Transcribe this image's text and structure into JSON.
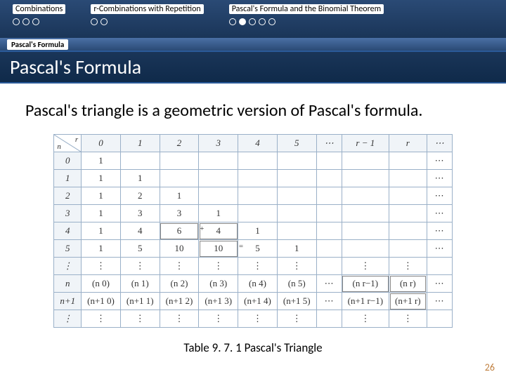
{
  "nav": {
    "sections": [
      {
        "label": "Combinations",
        "dots": [
          "open",
          "open",
          "open"
        ]
      },
      {
        "label": "r-Combinations with Repetition",
        "dots": [
          "open",
          "open"
        ]
      },
      {
        "label": "Pascal's Formula and the Binomial Theorem",
        "dots": [
          "open",
          "filled",
          "open",
          "open",
          "open"
        ]
      }
    ]
  },
  "sub_tab": "Pascal's Formula",
  "title": "Pascal's Formula",
  "body": "Pascal's triangle is a geometric version of Pascal's formula.",
  "table": {
    "col_headers": [
      "0",
      "1",
      "2",
      "3",
      "4",
      "5",
      "⋯",
      "r − 1",
      "r",
      "⋯"
    ],
    "rows": [
      {
        "n": "0",
        "cells": [
          "1",
          "",
          "",
          "",
          "",
          "",
          "",
          "",
          "",
          "⋯"
        ]
      },
      {
        "n": "1",
        "cells": [
          "1",
          "1",
          "",
          "",
          "",
          "",
          "",
          "",
          "",
          "⋯"
        ]
      },
      {
        "n": "2",
        "cells": [
          "1",
          "2",
          "1",
          "",
          "",
          "",
          "",
          "",
          "",
          "⋯"
        ]
      },
      {
        "n": "3",
        "cells": [
          "1",
          "3",
          "3",
          "1",
          "",
          "",
          "",
          "",
          "",
          "⋯"
        ]
      },
      {
        "n": "4",
        "cells": [
          "1",
          "4",
          "6",
          "4",
          "1",
          "",
          "",
          "",
          "",
          "⋯"
        ]
      },
      {
        "n": "5",
        "cells": [
          "1",
          "5",
          "10",
          "10",
          "5",
          "1",
          "",
          "",
          "",
          "⋯"
        ]
      },
      {
        "n": "⋮",
        "cells": [
          "⋮",
          "⋮",
          "⋮",
          "⋮",
          "⋮",
          "⋮",
          "",
          "⋮",
          "⋮",
          ""
        ]
      },
      {
        "n": "n",
        "cells": [
          "(n 0)",
          "(n 1)",
          "(n 2)",
          "(n 3)",
          "(n 4)",
          "(n 5)",
          "⋯",
          "(n r−1)",
          "(n r)",
          "⋯"
        ]
      },
      {
        "n": "n+1",
        "cells": [
          "(n+1 0)",
          "(n+1 1)",
          "(n+1 2)",
          "(n+1 3)",
          "(n+1 4)",
          "(n+1 5)",
          "⋯",
          "(n+1 r−1)",
          "(n+1 r)",
          "⋯"
        ]
      },
      {
        "n": "⋮",
        "cells": [
          "⋮",
          "⋮",
          "⋮",
          "⋮",
          "⋮",
          "⋮",
          "",
          "⋮",
          "⋮",
          ""
        ]
      }
    ],
    "highlight": {
      "add_cells": [
        [
          4,
          2
        ],
        [
          4,
          3
        ]
      ],
      "eq_cell": [
        5,
        3
      ],
      "box_cells": [
        [
          7,
          7
        ],
        [
          7,
          8
        ],
        [
          8,
          8
        ]
      ]
    }
  },
  "caption": "Table 9. 7. 1 Pascal's Triangle",
  "page_number": "26",
  "colors": {
    "nav_bg": "#1f3a5f",
    "title_bg": "#0f2a4a",
    "border": "#9ab0c8",
    "page_num": "#c08040"
  }
}
